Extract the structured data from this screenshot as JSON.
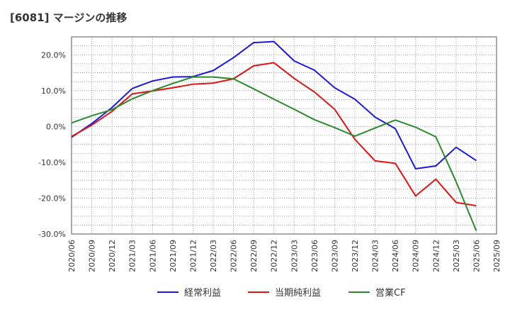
{
  "chart_data": {
    "type": "line",
    "title": "[6081]  マージンの推移",
    "xlabel": "",
    "ylabel": "",
    "ylim": [
      -30,
      25
    ],
    "yticks": [
      20,
      10,
      0,
      -10,
      -20,
      -30
    ],
    "ytick_labels": [
      "20.0%",
      "10.0%",
      "0.0%",
      "-10.0%",
      "-20.0%",
      "-30.0%"
    ],
    "x": [
      "2020/06",
      "2020/09",
      "2020/12",
      "2021/03",
      "2021/06",
      "2021/09",
      "2021/12",
      "2022/03",
      "2022/06",
      "2022/09",
      "2022/12",
      "2023/03",
      "2023/06",
      "2023/09",
      "2023/12",
      "2024/03",
      "2024/06",
      "2024/09",
      "2024/12",
      "2025/03",
      "2025/06",
      "2025/09"
    ],
    "grid": true,
    "legend_position": "bottom",
    "series": [
      {
        "name": "経常利益",
        "color": "#1a1adc",
        "values": [
          -3.0,
          0.8,
          5.3,
          10.6,
          12.7,
          13.8,
          13.9,
          15.6,
          19.2,
          23.4,
          23.7,
          18.3,
          15.7,
          10.8,
          7.6,
          2.6,
          -0.6,
          -11.8,
          -11.0,
          -5.8,
          -9.5,
          null
        ]
      },
      {
        "name": "当期純利益",
        "color": "#e01414",
        "values": [
          -2.8,
          0.4,
          4.2,
          9.1,
          9.9,
          10.8,
          11.8,
          12.1,
          13.3,
          16.9,
          17.8,
          13.4,
          9.6,
          4.8,
          -3.6,
          -9.6,
          -10.3,
          -19.4,
          -14.7,
          -21.2,
          -22.1,
          null
        ]
      },
      {
        "name": "営業CF",
        "color": "#2a8a2a",
        "values": [
          1.0,
          3.0,
          4.7,
          7.7,
          10.0,
          12.0,
          13.8,
          13.8,
          13.3,
          10.5,
          7.6,
          4.8,
          1.9,
          -0.3,
          -2.7,
          -0.4,
          1.8,
          -0.2,
          -2.9,
          -15.4,
          -29.1,
          null
        ]
      }
    ]
  }
}
